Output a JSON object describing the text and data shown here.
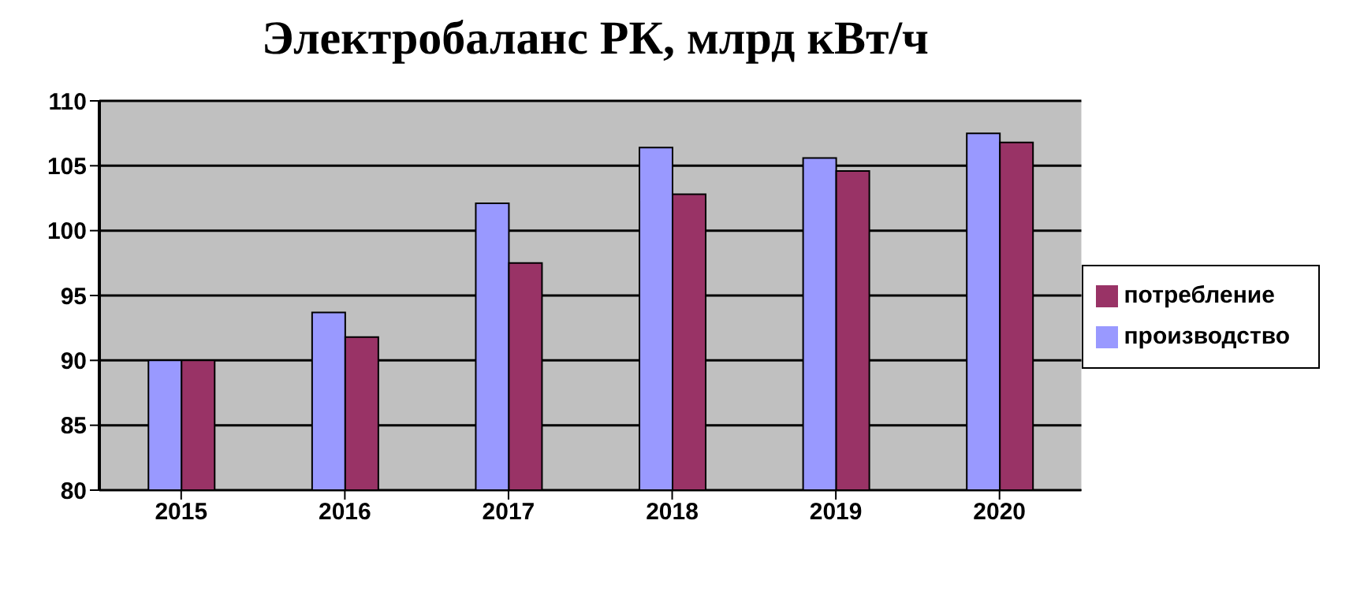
{
  "chart_data": {
    "type": "bar",
    "title": "Электробаланс РК, млрд кВт/ч",
    "categories": [
      "2015",
      "2016",
      "2017",
      "2018",
      "2019",
      "2020"
    ],
    "series": [
      {
        "name": "производство",
        "color": "#9999ff",
        "values": [
          90,
          93.7,
          102.1,
          106.4,
          105.6,
          107.5
        ]
      },
      {
        "name": "потребление",
        "color": "#993366",
        "values": [
          90,
          91.8,
          97.5,
          102.8,
          104.6,
          106.8
        ]
      }
    ],
    "ylim": [
      80,
      110
    ],
    "yticks": [
      80,
      85,
      90,
      95,
      100,
      105,
      110
    ],
    "grid": "y",
    "legend": "right"
  }
}
